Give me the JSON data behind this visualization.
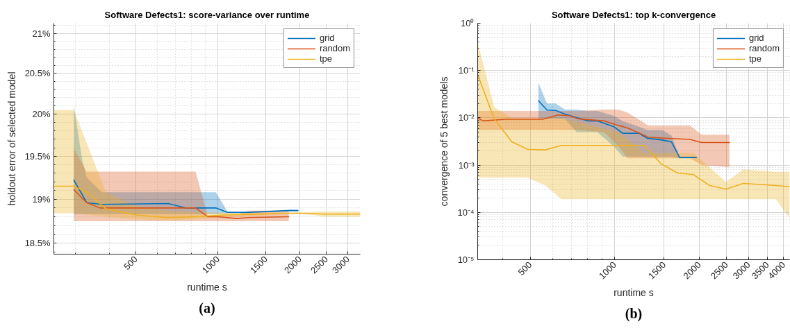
{
  "chart_data": [
    {
      "type": "line",
      "title": "Software Defects1: score-variance over runtime",
      "xlabel": "runtime s",
      "ylabel": "holdout error of selected model",
      "annotations": [
        "(a)"
      ],
      "log": "xy",
      "xlim": [
        250,
        3330
      ],
      "ylim": [
        18.38,
        21.13
      ],
      "xticks": [
        {
          "value": 300,
          "label": null
        },
        {
          "value": 400,
          "label": null
        },
        500,
        {
          "value": 600,
          "label": null
        },
        {
          "value": 700,
          "label": null
        },
        {
          "value": 800,
          "label": null
        },
        {
          "value": 900,
          "label": null
        },
        1000,
        1500,
        2000,
        2500,
        3000
      ],
      "yticks": [
        {
          "value": 18.4,
          "label": null
        },
        {
          "value": 18.5,
          "label": "18.5%"
        },
        {
          "value": 18.6,
          "label": null
        },
        {
          "value": 18.7,
          "label": null
        },
        {
          "value": 18.8,
          "label": null
        },
        {
          "value": 18.9,
          "label": null
        },
        {
          "value": 19,
          "label": "19%"
        },
        {
          "value": 19.1,
          "label": null
        },
        {
          "value": 19.2,
          "label": null
        },
        {
          "value": 19.3,
          "label": null
        },
        {
          "value": 19.4,
          "label": null
        },
        {
          "value": 19.5,
          "label": "19.5%"
        },
        {
          "value": 19.6,
          "label": null
        },
        {
          "value": 19.7,
          "label": null
        },
        {
          "value": 19.8,
          "label": null
        },
        {
          "value": 19.9,
          "label": null
        },
        {
          "value": 20,
          "label": "20%"
        },
        {
          "value": 20.1,
          "label": null
        },
        {
          "value": 20.2,
          "label": null
        },
        {
          "value": 20.3,
          "label": null
        },
        {
          "value": 20.4,
          "label": null
        },
        {
          "value": 20.5,
          "label": "20.5%"
        },
        {
          "value": 20.6,
          "label": null
        },
        {
          "value": 20.7,
          "label": null
        },
        {
          "value": 20.8,
          "label": null
        },
        {
          "value": 20.9,
          "label": null
        },
        {
          "value": 21,
          "label": "21%"
        },
        {
          "value": 21.1,
          "label": null
        }
      ],
      "grid": true,
      "legend": "top right",
      "series": [
        {
          "name": "grid",
          "color": "#0072bd",
          "x": [
            296,
            318,
            330,
            376,
            657,
            762,
            982,
            1084,
            1293,
            1820,
            1968
          ],
          "values": [
            19.22,
            19.05,
            18.96,
            18.94,
            18.95,
            18.9,
            18.9,
            18.85,
            18.85,
            18.87,
            18.87
          ],
          "upper": [
            20.1,
            19.45,
            19.25,
            19.08,
            19.08,
            19.08,
            19.08,
            18.86,
            18.86,
            18.88,
            18.88
          ],
          "lower": [
            18.83,
            18.83,
            18.83,
            18.83,
            18.83,
            18.83,
            18.83,
            18.84,
            18.84,
            18.86,
            18.86
          ]
        },
        {
          "name": "random",
          "color": "#d95319",
          "x": [
            296,
            330,
            369,
            828,
            918,
            1000,
            1172,
            1293,
            1820
          ],
          "values": [
            19.11,
            18.96,
            18.9,
            18.9,
            18.8,
            18.8,
            18.78,
            18.79,
            18.8
          ],
          "upper": [
            19.59,
            19.32,
            19.32,
            19.32,
            18.81,
            18.82,
            18.82,
            18.87,
            18.87
          ],
          "lower": [
            18.75,
            18.75,
            18.75,
            18.75,
            18.75,
            18.75,
            18.75,
            18.75,
            18.75
          ]
        },
        {
          "name": "tpe",
          "color": "#edb120",
          "x": [
            250,
            296,
            335,
            388,
            502,
            651,
            840,
            1042,
            1985,
            2467,
            3330
          ],
          "values": [
            19.15,
            19.15,
            19.07,
            18.89,
            18.82,
            18.79,
            18.8,
            18.82,
            18.84,
            18.83,
            18.83
          ],
          "upper": [
            20.05,
            20.05,
            19.6,
            19.08,
            18.92,
            18.87,
            18.85,
            18.85,
            18.85,
            18.86,
            18.86
          ],
          "lower": [
            18.84,
            18.84,
            18.82,
            18.8,
            18.77,
            18.76,
            18.77,
            18.79,
            18.84,
            18.8,
            18.8
          ]
        }
      ]
    },
    {
      "type": "line",
      "title": "Software Defects1: top k-convergence",
      "xlabel": "runtime s",
      "ylabel": "convergence of 5 best models",
      "annotations": [
        "(b)"
      ],
      "log": "xy",
      "xlim": [
        325,
        4200
      ],
      "ylim": [
        1e-05,
        1
      ],
      "xticks": [
        {
          "value": 400,
          "label": null
        },
        500,
        {
          "value": 600,
          "label": null
        },
        {
          "value": 700,
          "label": null
        },
        {
          "value": 800,
          "label": null
        },
        {
          "value": 900,
          "label": null
        },
        1000,
        1500,
        2000,
        2500,
        3000,
        3500,
        4000
      ],
      "yticks": [
        {
          "value": 1e-05,
          "label": "10⁻⁵"
        },
        {
          "value": 2e-05,
          "label": null
        },
        {
          "value": 3e-05,
          "label": null
        },
        {
          "value": 4e-05,
          "label": null
        },
        {
          "value": 5e-05,
          "label": null
        },
        {
          "value": 6e-05,
          "label": null
        },
        {
          "value": 7e-05,
          "label": null
        },
        {
          "value": 8e-05,
          "label": null
        },
        {
          "value": 9e-05,
          "label": null
        },
        {
          "value": 0.0001,
          "label": "10⁻⁴"
        },
        {
          "value": 0.0002,
          "label": null
        },
        {
          "value": 0.0003,
          "label": null
        },
        {
          "value": 0.0004,
          "label": null
        },
        {
          "value": 0.0005,
          "label": null
        },
        {
          "value": 0.0006,
          "label": null
        },
        {
          "value": 0.0007,
          "label": null
        },
        {
          "value": 0.0008,
          "label": null
        },
        {
          "value": 0.0009,
          "label": null
        },
        {
          "value": 0.001,
          "label": "10⁻³"
        },
        {
          "value": 0.002,
          "label": null
        },
        {
          "value": 0.003,
          "label": null
        },
        {
          "value": 0.004,
          "label": null
        },
        {
          "value": 0.005,
          "label": null
        },
        {
          "value": 0.006,
          "label": null
        },
        {
          "value": 0.007,
          "label": null
        },
        {
          "value": 0.008,
          "label": null
        },
        {
          "value": 0.009,
          "label": null
        },
        {
          "value": 0.01,
          "label": "10⁻²"
        },
        {
          "value": 0.02,
          "label": null
        },
        {
          "value": 0.03,
          "label": null
        },
        {
          "value": 0.04,
          "label": null
        },
        {
          "value": 0.05,
          "label": null
        },
        {
          "value": 0.06,
          "label": null
        },
        {
          "value": 0.07,
          "label": null
        },
        {
          "value": 0.08,
          "label": null
        },
        {
          "value": 0.09,
          "label": null
        },
        {
          "value": 0.1,
          "label": "10⁻¹"
        },
        {
          "value": 0.2,
          "label": null
        },
        {
          "value": 0.3,
          "label": null
        },
        {
          "value": 0.4,
          "label": null
        },
        {
          "value": 0.5,
          "label": null
        },
        {
          "value": 0.6,
          "label": null
        },
        {
          "value": 0.7,
          "label": null
        },
        {
          "value": 0.8,
          "label": null
        },
        {
          "value": 0.9,
          "label": null
        },
        {
          "value": 1,
          "label": "10⁰"
        }
      ],
      "grid": true,
      "legend": "top right",
      "series": [
        {
          "name": "grid",
          "color": "#0072bd",
          "x": [
            535,
            574,
            616,
            665,
            731,
            804,
            867,
            992,
            1069,
            1222,
            1305,
            1476,
            1593,
            1703,
            1955
          ],
          "values": [
            0.023,
            0.0146,
            0.0143,
            0.012,
            0.0101,
            0.0086,
            0.0086,
            0.0065,
            0.0047,
            0.0047,
            0.0037,
            0.0034,
            0.0031,
            0.00145,
            0.00145
          ],
          "upper": [
            0.055,
            0.02,
            0.02,
            0.015,
            0.015,
            0.014,
            0.014,
            0.011,
            0.0085,
            0.0065,
            0.0055,
            0.0055,
            0.0042,
            0.0015,
            0.0015
          ],
          "lower": [
            0.0095,
            0.0095,
            0.0095,
            0.0095,
            0.005,
            0.005,
            0.005,
            0.0025,
            0.0015,
            0.0015,
            0.0015,
            0.0015,
            0.0015,
            0.0014,
            0.0014
          ]
        },
        {
          "name": "random",
          "color": "#d95319",
          "x": [
            325,
            340,
            406,
            555,
            628,
            690,
            745,
            918,
            1031,
            1111,
            1318,
            1506,
            1854,
            2040,
            2563
          ],
          "values": [
            0.0099,
            0.0086,
            0.0093,
            0.0093,
            0.0115,
            0.011,
            0.0095,
            0.0086,
            0.0069,
            0.0061,
            0.0039,
            0.0037,
            0.0035,
            0.003,
            0.003
          ],
          "upper": [
            0.014,
            0.014,
            0.014,
            0.014,
            0.014,
            0.014,
            0.014,
            0.015,
            0.015,
            0.013,
            0.0069,
            0.0069,
            0.0069,
            0.0044,
            0.0044
          ],
          "lower": [
            0.0055,
            0.0055,
            0.0055,
            0.0055,
            0.0055,
            0.0055,
            0.0055,
            0.005,
            0.0025,
            0.0014,
            0.0014,
            0.0014,
            0.0014,
            0.001,
            0.00091
          ]
        },
        {
          "name": "tpe",
          "color": "#edb120",
          "x": [
            325,
            372,
            430,
            491,
            566,
            646,
            1031,
            1278,
            1462,
            1674,
            1907,
            2181,
            2490,
            2871,
            3748,
            4200
          ],
          "values": [
            0.082,
            0.0096,
            0.0031,
            0.00215,
            0.0021,
            0.0026,
            0.0026,
            0.0026,
            0.00107,
            0.00068,
            0.00063,
            0.00037,
            0.00031,
            0.00041,
            0.00037,
            0.00035
          ],
          "upper": [
            0.4,
            0.017,
            0.01,
            0.01,
            0.01,
            0.01,
            0.005,
            0.0018,
            0.0018,
            0.0018,
            0.0018,
            0.0009,
            0.00044,
            0.00081,
            0.00072,
            0.00072
          ],
          "lower": [
            0.00054,
            0.00054,
            0.00054,
            0.00054,
            0.00037,
            0.00019,
            0.00019,
            0.00019,
            0.00019,
            0.00019,
            0.00019,
            0.00019,
            0.00019,
            0.00019,
            0.00019,
            7.6e-05
          ]
        }
      ]
    }
  ]
}
